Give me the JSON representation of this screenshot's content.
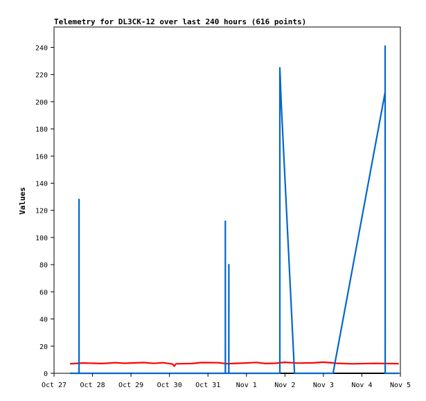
{
  "chart_data": {
    "type": "line",
    "title": "Telemetry for DL3CK-12 over last 240 hours (616 points)",
    "xlabel": "",
    "ylabel": "Values",
    "x_unit": "date",
    "x_ticks": [
      "Oct 27",
      "Oct 28",
      "Oct 29",
      "Oct 30",
      "Oct 31",
      "Nov 1",
      "Nov 2",
      "Nov 3",
      "Nov 4",
      "Nov 5"
    ],
    "xlim": [
      "Oct 27 00:00",
      "Nov 5 00:00"
    ],
    "ylim": [
      0,
      255
    ],
    "y_ticks": [
      0,
      20,
      40,
      60,
      80,
      100,
      120,
      140,
      160,
      180,
      200,
      220,
      240
    ],
    "grid": false,
    "legend": "none",
    "series": [
      {
        "color": "#0066cc",
        "points": [
          [
            "Oct 27 10:00",
            0
          ],
          [
            "Oct 27 15:35",
            0
          ],
          [
            "Oct 27 15:36",
            128
          ],
          [
            "Oct 27 15:37",
            0
          ],
          [
            "Oct 31 10:50",
            0
          ],
          [
            "Oct 31 10:51",
            112
          ],
          [
            "Oct 31 10:52",
            0
          ],
          [
            "Oct 31 13:00",
            0
          ],
          [
            "Oct 31 13:01",
            80
          ],
          [
            "Oct 31 13:02",
            0
          ],
          [
            "Nov 1 20:50",
            0
          ],
          [
            "Nov 1 20:51",
            225
          ],
          [
            "Nov 1 21:40",
            200
          ],
          [
            "Nov 2 06:00",
            0
          ],
          [
            "Nov 3 06:00",
            0
          ],
          [
            "Nov 4 14:30",
            207
          ],
          [
            "Nov 4 14:31",
            241
          ],
          [
            "Nov 4 14:32",
            0
          ],
          [
            "Nov 4 23:00",
            0
          ]
        ]
      },
      {
        "color": "#ff0000",
        "points": [
          [
            "Oct 27 10:00",
            7.0
          ],
          [
            "Oct 27 18:00",
            7.6
          ],
          [
            "Oct 28 06:00",
            7.2
          ],
          [
            "Oct 28 14:00",
            7.8
          ],
          [
            "Oct 28 20:00",
            7.4
          ],
          [
            "Oct 29 08:00",
            7.9
          ],
          [
            "Oct 29 14:00",
            7.3
          ],
          [
            "Oct 29 20:00",
            7.8
          ],
          [
            "Oct 30 02:00",
            6.8
          ],
          [
            "Oct 30 03:00",
            5.2
          ],
          [
            "Oct 30 04:00",
            7.0
          ],
          [
            "Oct 30 14:00",
            7.2
          ],
          [
            "Oct 30 20:00",
            7.9
          ],
          [
            "Oct 31 06:00",
            7.8
          ],
          [
            "Oct 31 12:00",
            7.1
          ],
          [
            "Nov 1 00:00",
            7.6
          ],
          [
            "Nov 1 06:00",
            8.0
          ],
          [
            "Nov 1 12:00",
            7.2
          ],
          [
            "Nov 1 18:00",
            7.4
          ],
          [
            "Nov 2 00:00",
            8.1
          ],
          [
            "Nov 2 08:00",
            7.5
          ],
          [
            "Nov 2 18:00",
            7.7
          ],
          [
            "Nov 3 00:00",
            8.2
          ],
          [
            "Nov 3 08:00",
            7.4
          ],
          [
            "Nov 3 18:00",
            7.0
          ],
          [
            "Nov 4 08:00",
            7.3
          ],
          [
            "Nov 4 23:00",
            7.1
          ]
        ]
      },
      {
        "color": "#000000",
        "points": [
          [
            "Oct 27 10:00",
            0
          ],
          [
            "Nov 4 23:00",
            0
          ]
        ]
      }
    ]
  }
}
